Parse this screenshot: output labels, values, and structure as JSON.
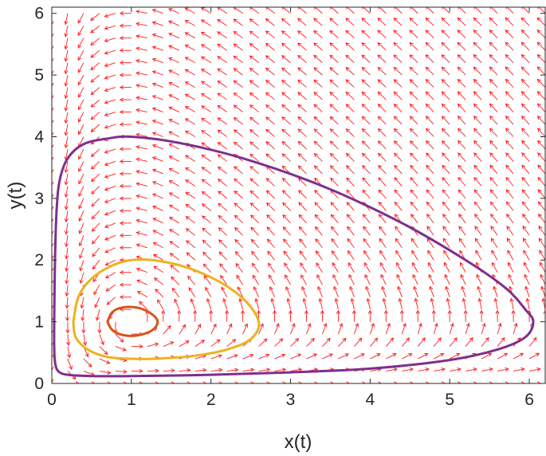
{
  "chart_data": {
    "type": "line",
    "title": "",
    "xlabel": "x(t)",
    "ylabel": "y(t)",
    "xlim": [
      0,
      6.2
    ],
    "ylim": [
      0,
      6.1
    ],
    "xticks": [
      0,
      1,
      2,
      3,
      4,
      5,
      6
    ],
    "yticks": [
      0,
      1,
      2,
      3,
      4,
      5,
      6
    ],
    "grid": false,
    "legend": "none",
    "quiver": {
      "color": "#ff1a1a",
      "field": "dx/dt = x - x*y, dy/dt = x*y - y",
      "x_range": [
        0,
        6.2
      ],
      "y_range": [
        0,
        6.1
      ],
      "step": 0.2
    },
    "series": [
      {
        "color": "#d95319",
        "x": [
          0.7,
          0.75,
          0.85,
          1.0,
          1.15,
          1.28,
          1.33,
          1.28,
          1.15,
          1.0,
          0.85,
          0.75,
          0.7
        ],
        "y": [
          1.0,
          1.14,
          1.22,
          1.24,
          1.2,
          1.1,
          1.0,
          0.88,
          0.8,
          0.77,
          0.8,
          0.88,
          1.0
        ]
      },
      {
        "color": "#edb120",
        "x": [
          0.27,
          0.35,
          0.6,
          1.0,
          1.5,
          2.0,
          2.4,
          2.6,
          2.5,
          2.2,
          1.8,
          1.3,
          1.0,
          0.7,
          0.45,
          0.3,
          0.27
        ],
        "y": [
          1.0,
          1.45,
          1.8,
          2.0,
          1.95,
          1.72,
          1.38,
          1.0,
          0.72,
          0.55,
          0.45,
          0.4,
          0.4,
          0.43,
          0.55,
          0.75,
          1.0
        ]
      },
      {
        "color": "#7e2f8e",
        "x": [
          0.03,
          0.04,
          0.06,
          0.1,
          0.2,
          0.4,
          0.7,
          1.0,
          1.6,
          2.4,
          3.4,
          4.4,
          5.2,
          5.7,
          5.95,
          6.05,
          5.95,
          5.6,
          5.0,
          4.0,
          3.0,
          2.0,
          1.0,
          0.5,
          0.2,
          0.08,
          0.04,
          0.03,
          0.03
        ],
        "y": [
          1.0,
          2.0,
          2.8,
          3.3,
          3.65,
          3.88,
          3.97,
          4.0,
          3.9,
          3.65,
          3.2,
          2.6,
          2.0,
          1.55,
          1.2,
          1.0,
          0.75,
          0.55,
          0.38,
          0.24,
          0.18,
          0.14,
          0.12,
          0.12,
          0.14,
          0.2,
          0.35,
          0.6,
          1.0
        ]
      }
    ]
  }
}
